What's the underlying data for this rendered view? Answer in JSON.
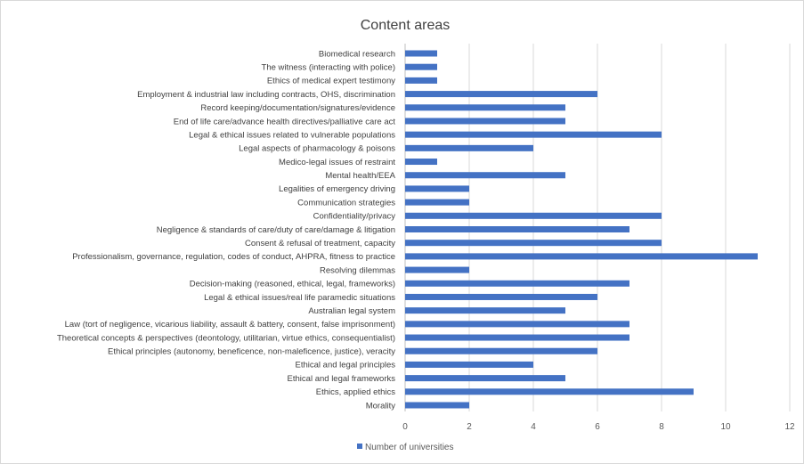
{
  "chart_data": {
    "type": "bar",
    "orientation": "horizontal",
    "title": "Content areas",
    "xlabel": "",
    "ylabel": "",
    "xlim": [
      0,
      12
    ],
    "x_ticks": [
      0,
      2,
      4,
      6,
      8,
      10,
      12
    ],
    "grid": true,
    "legend_position": "bottom-left",
    "bar_color": "#4472C4",
    "categories": [
      "Biomedical research",
      "The witness (interacting with police)",
      "Ethics of medical expert testimony",
      "Employment & industrial law including contracts, OHS, discrimination",
      "Record keeping/documentation/signatures/evidence",
      "End of life care/advance health directives/palliative care act",
      "Legal & ethical issues related to vulnerable populations",
      "Legal aspects of pharmacology & poisons",
      "Medico-legal issues of restraint",
      "Mental health/EEA",
      "Legalities of emergency driving",
      "Communication strategies",
      "Confidentiality/privacy",
      "Negligence & standards of care/duty of care/damage & litigation",
      "Consent & refusal of treatment, capacity",
      "Professionalism, governance, regulation, codes of conduct, AHPRA, fitness to practice",
      "Resolving dilemmas",
      "Decision-making (reasoned, ethical, legal, frameworks)",
      "Legal & ethical issues/real life paramedic situations",
      "Australian legal system",
      "Law (tort of negligence, vicarious liability, assault & battery, consent, false imprisonment)",
      "Theoretical concepts & perspectives (deontology, utilitarian, virtue ethics, consequentialist)",
      "Ethical principles (autonomy, beneficence, non-maleficence, justice), veracity",
      "Ethical and legal principles",
      "Ethical and legal frameworks",
      "Ethics, applied ethics",
      "Morality"
    ],
    "series": [
      {
        "name": "Number of universities",
        "values": [
          1,
          1,
          1,
          6,
          5,
          5,
          8,
          4,
          1,
          5,
          2,
          2,
          8,
          7,
          8,
          11,
          2,
          7,
          6,
          5,
          7,
          7,
          6,
          4,
          5,
          9,
          2
        ]
      }
    ]
  }
}
